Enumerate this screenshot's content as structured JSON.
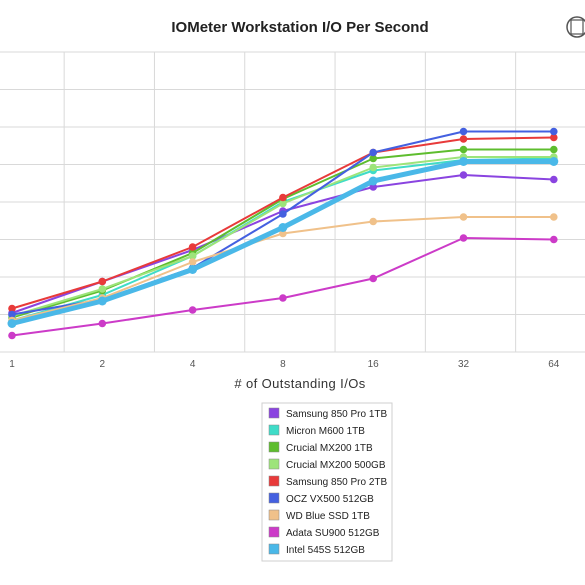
{
  "chart_data": {
    "type": "line",
    "title": "IOMeter Workstation I/O Per Second",
    "xlabel": "# of Outstanding I/Os",
    "ylabel": "",
    "x": [
      "1",
      "2",
      "4",
      "8",
      "16",
      "32",
      "64"
    ],
    "ylim": [
      0,
      100
    ],
    "grid": true,
    "legend_position": "bottom-center",
    "series": [
      {
        "name": "Samsung 850 Pro 1TB",
        "color": "#8a44e0",
        "values": [
          13,
          23.5,
          34,
          47,
          55,
          59,
          57.5
        ]
      },
      {
        "name": "Micron M600 1TB",
        "color": "#3fdcc8",
        "values": [
          10.5,
          19,
          32,
          50,
          60.5,
          64,
          64.5
        ]
      },
      {
        "name": "Crucial MX200 1TB",
        "color": "#5ebd2e",
        "values": [
          11.5,
          20.5,
          33,
          51,
          64.5,
          67.5,
          67.5
        ]
      },
      {
        "name": "Crucial MX200 500GB",
        "color": "#9de47a",
        "values": [
          12,
          21,
          32,
          49.5,
          61.5,
          65,
          65
        ]
      },
      {
        "name": "Samsung 850 Pro 2TB",
        "color": "#e83a3a",
        "values": [
          14.5,
          23.5,
          35,
          51.5,
          66.5,
          71,
          71.5
        ]
      },
      {
        "name": "OCZ VX500 512GB",
        "color": "#4460e0",
        "values": [
          12.5,
          17.5,
          28,
          46,
          66.5,
          73.5,
          73.5
        ]
      },
      {
        "name": "WD Blue SSD 1TB",
        "color": "#f0c18a",
        "values": [
          10.5,
          18,
          30,
          39.5,
          43.5,
          45,
          45
        ]
      },
      {
        "name": "Adata SU900 512GB",
        "color": "#cc3bc8",
        "values": [
          5.5,
          9.5,
          14,
          18,
          24.5,
          38,
          37.5
        ]
      },
      {
        "name": "Intel 545S 512GB",
        "color": "#4ab8e8",
        "values": [
          9.5,
          17,
          27.5,
          41.5,
          57,
          63.5,
          63.5
        ]
      }
    ]
  }
}
